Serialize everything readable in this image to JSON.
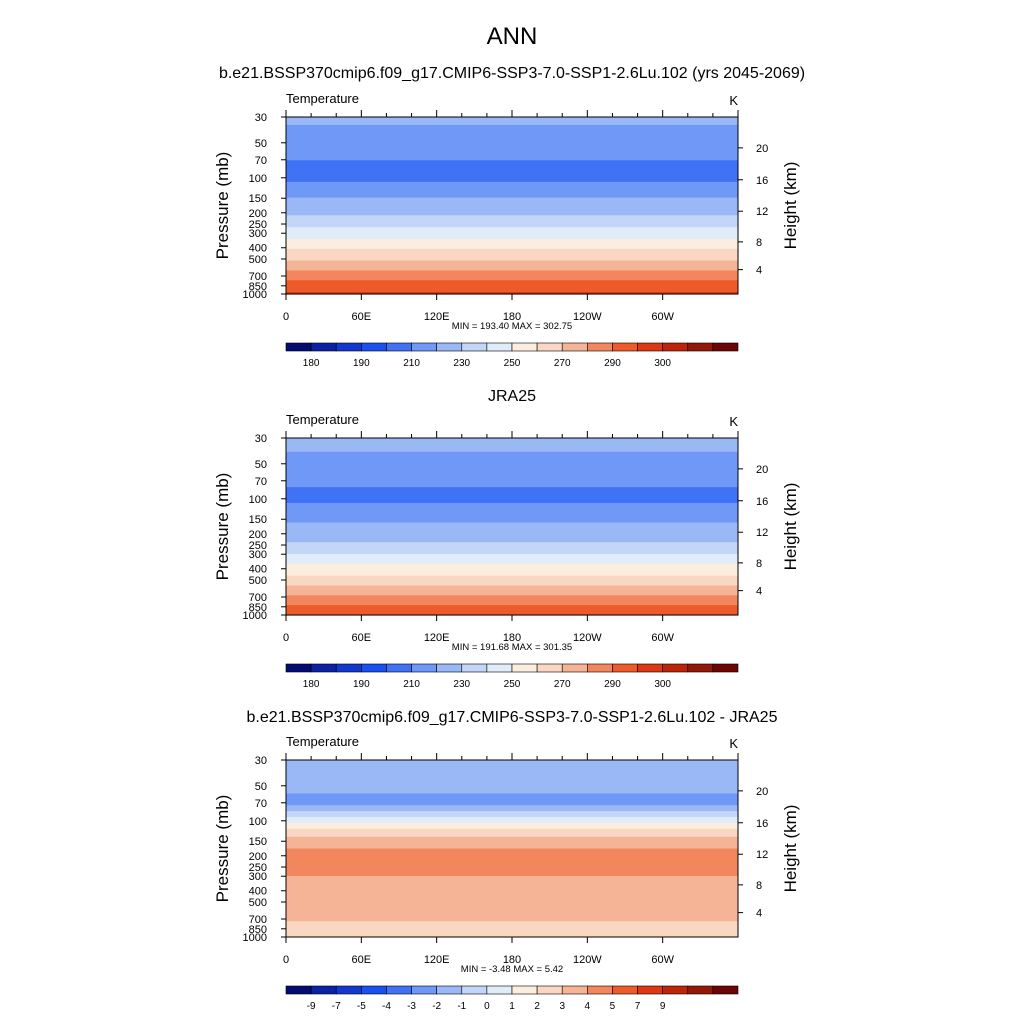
{
  "figure": {
    "title": "ANN"
  },
  "colormap_18": [
    "#040c72",
    "#0b22a4",
    "#1238d0",
    "#1a50ef",
    "#3f72f5",
    "#6f98f7",
    "#9ab8f5",
    "#c3d6f7",
    "#e1ecf9",
    "#fbeede",
    "#f9d7c3",
    "#f6b497",
    "#f2875e",
    "#ef5a2a",
    "#dd3713",
    "#bd2508",
    "#931807",
    "#6b0604"
  ],
  "chart_data": [
    {
      "type": "heatmap",
      "subtitle": "b.e21.BSSP370cmip6.f09_g17.CMIP6-SSP3-7.0-SSP1-2.6Lu.102 (yrs 2045-2069)",
      "variable": "Temperature",
      "units": "K",
      "ylabel": "Pressure (mb)",
      "ylabel_right": "Height (km)",
      "x_ticks": [
        "0",
        "60E",
        "120E",
        "180",
        "120W",
        "60W"
      ],
      "y_ticks": [
        "30",
        "50",
        "70",
        "100",
        "150",
        "200",
        "250",
        "300",
        "400",
        "500",
        "700",
        "850",
        "1000"
      ],
      "height_ticks": [
        "20",
        "16",
        "12",
        "8",
        "4"
      ],
      "stats": "MIN = 193.40  MAX = 302.75",
      "colorbar_labels": [
        "180",
        "190",
        "210",
        "230",
        "250",
        "270",
        "290",
        "300"
      ],
      "levels": [
        170,
        175,
        180,
        185,
        190,
        200,
        210,
        220,
        230,
        240,
        250,
        260,
        270,
        280,
        290,
        295,
        300,
        305
      ],
      "profile": [
        {
          "p": 30,
          "v": 212
        },
        {
          "p": 50,
          "v": 206
        },
        {
          "p": 70,
          "v": 200
        },
        {
          "p": 100,
          "v": 197
        },
        {
          "p": 150,
          "v": 210
        },
        {
          "p": 200,
          "v": 219
        },
        {
          "p": 250,
          "v": 226
        },
        {
          "p": 300,
          "v": 235
        },
        {
          "p": 400,
          "v": 249
        },
        {
          "p": 500,
          "v": 259
        },
        {
          "p": 700,
          "v": 276
        },
        {
          "p": 850,
          "v": 284
        },
        {
          "p": 1000,
          "v": 291
        }
      ],
      "min": 193.4,
      "max": 302.75
    },
    {
      "type": "heatmap",
      "subtitle": "JRA25",
      "variable": "Temperature",
      "units": "K",
      "ylabel": "Pressure (mb)",
      "ylabel_right": "Height (km)",
      "x_ticks": [
        "0",
        "60E",
        "120E",
        "180",
        "120W",
        "60W"
      ],
      "y_ticks": [
        "30",
        "50",
        "70",
        "100",
        "150",
        "200",
        "250",
        "300",
        "400",
        "500",
        "700",
        "850",
        "1000"
      ],
      "height_ticks": [
        "20",
        "16",
        "12",
        "8",
        "4"
      ],
      "stats": "MIN = 191.68  MAX = 301.35",
      "colorbar_labels": [
        "180",
        "190",
        "210",
        "230",
        "250",
        "270",
        "290",
        "300"
      ],
      "levels": [
        170,
        175,
        180,
        185,
        190,
        200,
        210,
        220,
        230,
        240,
        250,
        260,
        270,
        280,
        290,
        295,
        300,
        305
      ],
      "profile": [
        {
          "p": 30,
          "v": 213
        },
        {
          "p": 50,
          "v": 207
        },
        {
          "p": 70,
          "v": 201
        },
        {
          "p": 100,
          "v": 198
        },
        {
          "p": 150,
          "v": 208
        },
        {
          "p": 200,
          "v": 216
        },
        {
          "p": 250,
          "v": 222
        },
        {
          "p": 300,
          "v": 230
        },
        {
          "p": 400,
          "v": 244
        },
        {
          "p": 500,
          "v": 255
        },
        {
          "p": 700,
          "v": 272
        },
        {
          "p": 850,
          "v": 281
        },
        {
          "p": 1000,
          "v": 289
        }
      ],
      "min": 191.68,
      "max": 301.35
    },
    {
      "type": "heatmap",
      "subtitle": "b.e21.BSSP370cmip6.f09_g17.CMIP6-SSP3-7.0-SSP1-2.6Lu.102 - JRA25",
      "variable": "Temperature",
      "units": "K",
      "ylabel": "Pressure (mb)",
      "ylabel_right": "Height (km)",
      "x_ticks": [
        "0",
        "60E",
        "120E",
        "180",
        "120W",
        "60W"
      ],
      "y_ticks": [
        "30",
        "50",
        "70",
        "100",
        "150",
        "200",
        "250",
        "300",
        "400",
        "500",
        "700",
        "850",
        "1000"
      ],
      "height_ticks": [
        "20",
        "16",
        "12",
        "8",
        "4"
      ],
      "stats": "MIN =  -3.48  MAX =   5.42",
      "colorbar_labels": [
        "-9",
        "-7",
        "-5",
        "-4",
        "-3",
        "-2",
        "-1",
        "0",
        "1",
        "2",
        "3",
        "4",
        "5",
        "7",
        "9"
      ],
      "levels": [
        -11,
        -10,
        -8,
        -6,
        -4.5,
        -3.5,
        -2.5,
        -1.5,
        -0.5,
        0.5,
        1.5,
        2.5,
        3.5,
        4.5,
        6,
        8,
        10,
        11
      ],
      "profile": [
        {
          "p": 30,
          "v": -1.8
        },
        {
          "p": 50,
          "v": -2.3
        },
        {
          "p": 70,
          "v": -2.8
        },
        {
          "p": 100,
          "v": 0.3
        },
        {
          "p": 150,
          "v": 3.2
        },
        {
          "p": 200,
          "v": 3.8
        },
        {
          "p": 250,
          "v": 3.8
        },
        {
          "p": 300,
          "v": 3.5
        },
        {
          "p": 400,
          "v": 3.2
        },
        {
          "p": 500,
          "v": 3.1
        },
        {
          "p": 700,
          "v": 2.6
        },
        {
          "p": 850,
          "v": 2.0
        },
        {
          "p": 1000,
          "v": 2.3
        }
      ],
      "min": -3.48,
      "max": 5.42
    }
  ]
}
